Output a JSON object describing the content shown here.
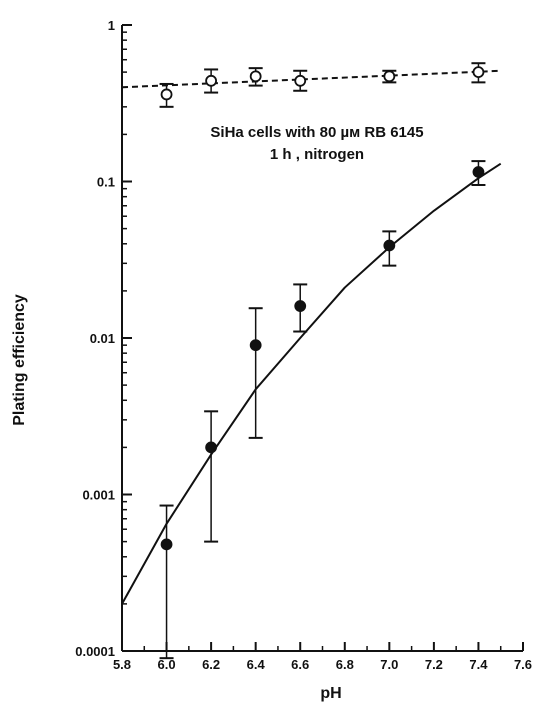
{
  "chart_data": {
    "type": "scatter",
    "xlabel": "pH",
    "ylabel": "Plating efficiency",
    "annotation": [
      "SiHa cells with 80 µм RB 6145",
      "1 h , nitrogen"
    ],
    "xlim": [
      5.8,
      7.6
    ],
    "ylim": [
      0.0001,
      1
    ],
    "yscale": "log",
    "grid": false,
    "x_ticks": [
      "5.8",
      "6.0",
      "6.2",
      "6.4",
      "6.6",
      "6.8",
      "7.0",
      "7.2",
      "7.4",
      "7.6"
    ],
    "y_ticks": [
      "0.0001",
      "0.001",
      "0.01",
      "0.1",
      "1"
    ],
    "series": [
      {
        "marker": "open-circle",
        "line": "dashed",
        "x": [
          6.0,
          6.2,
          6.4,
          6.6,
          7.0,
          7.4
        ],
        "y": [
          0.36,
          0.44,
          0.47,
          0.44,
          0.47,
          0.5
        ],
        "y_err_low": [
          0.3,
          0.37,
          0.41,
          0.38,
          0.43,
          0.43
        ],
        "y_err_high": [
          0.42,
          0.52,
          0.53,
          0.51,
          0.51,
          0.57
        ],
        "fit_x": [
          5.8,
          7.5
        ],
        "fit_y": [
          0.4,
          0.51
        ]
      },
      {
        "marker": "filled-circle",
        "line": "solid",
        "x": [
          6.0,
          6.2,
          6.4,
          6.6,
          7.0,
          7.4
        ],
        "y": [
          0.00048,
          0.002,
          0.009,
          0.016,
          0.039,
          0.115
        ],
        "y_err_low": [
          9e-05,
          0.0005,
          0.0023,
          0.011,
          0.029,
          0.095
        ],
        "y_err_high": [
          0.00085,
          0.0034,
          0.0155,
          0.022,
          0.048,
          0.135
        ],
        "fit_x": [
          5.8,
          6.0,
          6.2,
          6.4,
          6.6,
          6.8,
          7.0,
          7.2,
          7.4,
          7.5
        ],
        "fit_y": [
          0.0002,
          0.00065,
          0.0018,
          0.0047,
          0.01,
          0.021,
          0.038,
          0.065,
          0.105,
          0.13
        ]
      }
    ]
  }
}
